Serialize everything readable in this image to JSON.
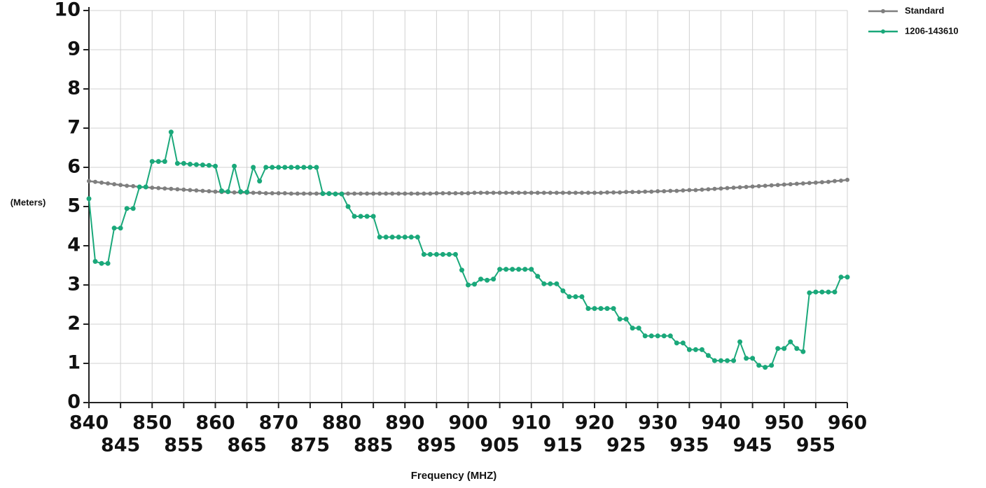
{
  "chart_data": {
    "type": "line",
    "xlabel": "Frequency (MHZ)",
    "ylabel": "(Meters)",
    "x": [
      840,
      841,
      842,
      843,
      844,
      845,
      846,
      847,
      848,
      849,
      850,
      851,
      852,
      853,
      854,
      855,
      856,
      857,
      858,
      859,
      860,
      861,
      862,
      863,
      864,
      865,
      866,
      867,
      868,
      869,
      870,
      871,
      872,
      873,
      874,
      875,
      876,
      877,
      878,
      879,
      880,
      881,
      882,
      883,
      884,
      885,
      886,
      887,
      888,
      889,
      890,
      891,
      892,
      893,
      894,
      895,
      896,
      897,
      898,
      899,
      900,
      901,
      902,
      903,
      904,
      905,
      906,
      907,
      908,
      909,
      910,
      911,
      912,
      913,
      914,
      915,
      916,
      917,
      918,
      919,
      920,
      921,
      922,
      923,
      924,
      925,
      926,
      927,
      928,
      929,
      930,
      931,
      932,
      933,
      934,
      935,
      936,
      937,
      938,
      939,
      940,
      941,
      942,
      943,
      944,
      945,
      946,
      947,
      948,
      949,
      950,
      951,
      952,
      953,
      954,
      955,
      956,
      957,
      958,
      959,
      960
    ],
    "series": [
      {
        "name": "Standard",
        "color": "#7f7f7f",
        "values": [
          5.65,
          5.63,
          5.61,
          5.59,
          5.57,
          5.55,
          5.53,
          5.52,
          5.5,
          5.49,
          5.48,
          5.47,
          5.46,
          5.45,
          5.44,
          5.43,
          5.42,
          5.41,
          5.4,
          5.39,
          5.38,
          5.37,
          5.37,
          5.36,
          5.36,
          5.35,
          5.35,
          5.35,
          5.34,
          5.34,
          5.34,
          5.34,
          5.33,
          5.33,
          5.33,
          5.33,
          5.33,
          5.33,
          5.33,
          5.33,
          5.33,
          5.33,
          5.33,
          5.33,
          5.33,
          5.33,
          5.33,
          5.33,
          5.33,
          5.33,
          5.33,
          5.33,
          5.33,
          5.33,
          5.33,
          5.34,
          5.34,
          5.34,
          5.34,
          5.34,
          5.34,
          5.35,
          5.35,
          5.35,
          5.35,
          5.35,
          5.35,
          5.35,
          5.35,
          5.35,
          5.35,
          5.35,
          5.35,
          5.35,
          5.35,
          5.35,
          5.35,
          5.35,
          5.35,
          5.35,
          5.35,
          5.35,
          5.36,
          5.36,
          5.36,
          5.37,
          5.37,
          5.37,
          5.38,
          5.38,
          5.39,
          5.39,
          5.4,
          5.4,
          5.41,
          5.42,
          5.42,
          5.43,
          5.44,
          5.45,
          5.46,
          5.47,
          5.48,
          5.49,
          5.5,
          5.51,
          5.52,
          5.53,
          5.54,
          5.55,
          5.56,
          5.57,
          5.58,
          5.59,
          5.6,
          5.61,
          5.62,
          5.63,
          5.65,
          5.66,
          5.68
        ]
      },
      {
        "name": "1206-143610",
        "color": "#1aa87a",
        "values": [
          5.2,
          3.6,
          3.55,
          3.55,
          4.45,
          4.45,
          4.95,
          4.95,
          5.5,
          5.5,
          6.15,
          6.15,
          6.15,
          6.9,
          6.1,
          6.1,
          6.08,
          6.07,
          6.06,
          6.05,
          6.03,
          5.4,
          5.38,
          6.03,
          5.38,
          5.37,
          6.0,
          5.65,
          6.0,
          6.0,
          6.0,
          6.0,
          6.0,
          6.0,
          6.0,
          6.0,
          6.0,
          5.33,
          5.33,
          5.32,
          5.32,
          5.0,
          4.75,
          4.75,
          4.75,
          4.75,
          4.22,
          4.22,
          4.22,
          4.22,
          4.22,
          4.22,
          4.22,
          3.78,
          3.78,
          3.78,
          3.78,
          3.78,
          3.78,
          3.38,
          3.0,
          3.02,
          3.15,
          3.12,
          3.15,
          3.4,
          3.4,
          3.4,
          3.4,
          3.4,
          3.4,
          3.22,
          3.03,
          3.03,
          3.03,
          2.85,
          2.7,
          2.7,
          2.7,
          2.4,
          2.4,
          2.4,
          2.4,
          2.4,
          2.13,
          2.13,
          1.9,
          1.9,
          1.7,
          1.7,
          1.7,
          1.7,
          1.7,
          1.52,
          1.52,
          1.35,
          1.35,
          1.35,
          1.2,
          1.07,
          1.07,
          1.07,
          1.07,
          1.55,
          1.13,
          1.13,
          0.95,
          0.9,
          0.95,
          1.38,
          1.38,
          1.55,
          1.38,
          1.3,
          2.8,
          2.82,
          2.82,
          2.82,
          2.82,
          3.2,
          3.2
        ]
      }
    ],
    "xlim": [
      840,
      960
    ],
    "xticks": [
      840,
      845,
      850,
      855,
      860,
      865,
      870,
      875,
      880,
      885,
      890,
      895,
      900,
      905,
      910,
      915,
      920,
      925,
      930,
      935,
      940,
      945,
      950,
      955,
      960
    ],
    "ylim": [
      0,
      10
    ],
    "yticks": [
      0,
      1,
      2,
      3,
      4,
      5,
      6,
      7,
      8,
      9,
      10
    ],
    "grid": true,
    "legend": "upper right"
  }
}
